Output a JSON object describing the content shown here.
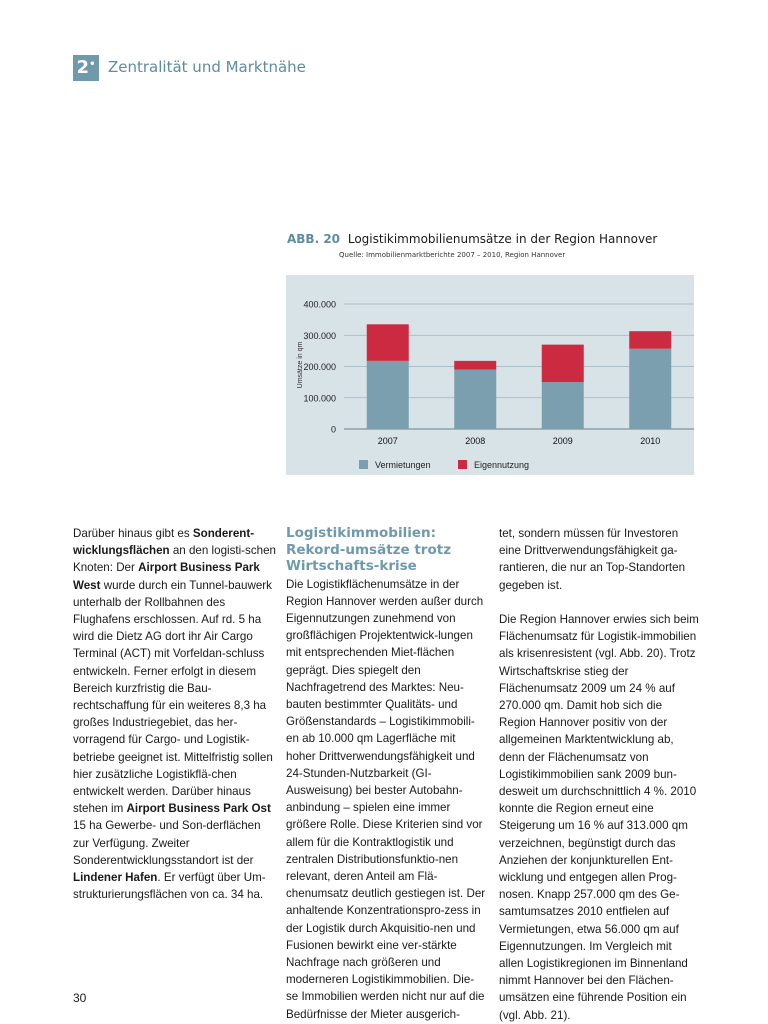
{
  "chapter": {
    "number": "2",
    "title": "Zentralität und Marktnähe"
  },
  "figure": {
    "number": "ABB. 20",
    "title": "Logistikimmobilienumsätze in der Region Hannover",
    "source": "Quelle: Immobilienmarktberichte 2007 – 2010, Region Hannover"
  },
  "chart_data": {
    "type": "bar",
    "stacked": true,
    "categories": [
      "2007",
      "2008",
      "2009",
      "2010"
    ],
    "series": [
      {
        "name": "Vermietungen",
        "color": "#7c9fb0",
        "values": [
          218000,
          190000,
          150000,
          257000
        ]
      },
      {
        "name": "Eigennutzung",
        "color": "#cc2a41",
        "values": [
          117000,
          28000,
          120000,
          56000
        ]
      }
    ],
    "ylabel": "Umsätze in qm",
    "ylim": [
      0,
      400000
    ],
    "yticks": [
      0,
      100000,
      200000,
      300000,
      400000
    ],
    "ytick_labels": [
      "0",
      "100.000",
      "200.000",
      "300.000",
      "400.000"
    ],
    "grid": true,
    "legend_position": "bottom",
    "background_color": "#d8e3e8"
  },
  "column1": {
    "p1_a": "Darüber hinaus gibt es ",
    "p1_b": "Sonderent-wicklungsflächen",
    "p1_c": " an den logisti-schen Knoten: Der ",
    "p1_d": "Airport Business Park West",
    "p1_e": " wurde durch ein Tunnel-bauwerk unterhalb der Rollbahnen des Flughafens erschlossen. Auf rd. 5 ha wird die Dietz AG dort ihr Air Cargo Terminal (ACT) mit Vorfeldan-schluss entwickeln. Ferner erfolgt in diesem Bereich kurzfristig die Bau-rechtschaffung für ein weiteres 8,3 ha großes Industriegebiet, das her-vorragend für Cargo- und Logistik-betriebe geeignet ist. Mittelfristig sollen hier zusätzliche Logistikflä-chen entwickelt werden. Darüber hinaus stehen im ",
    "p1_f": "Airport Business Park Ost",
    "p1_g": " 15 ha Gewerbe- und Son-derflächen zur Verfügung. Zweiter Sonderentwicklungsstandort ist der ",
    "p1_h": "Lindener Hafen",
    "p1_i": ". Er verfügt über Um-strukturierungsflächen von ca. 34 ha."
  },
  "column2": {
    "heading": "Logistikimmobilien: Rekord-umsätze trotz Wirtschafts-krise",
    "text": "Die Logistikflächenumsätze in der Region Hannover werden außer durch Eigennutzungen zunehmend von großflächigen Projektentwick-lungen mit entsprechenden Miet-flächen geprägt. Dies spiegelt den Nachfragetrend des Marktes: Neu-bauten bestimmter Qualitäts- und Größenstandards – Logistikimmobili-en ab 10.000 qm Lagerfläche mit hoher Drittverwendungsfähigkeit und 24-Stunden-Nutzbarkeit (GI-Ausweisung) bei bester Autobahn-anbindung – spielen eine immer größere Rolle. Diese Kriterien sind vor allem für die Kontraktlogistik und zentralen Distributionsfunktio-nen relevant, deren Anteil am Flä-chenumsatz deutlich gestiegen ist. Der anhaltende Konzentrationspro-zess in der Logistik durch Akquisitio-nen und Fusionen bewirkt eine ver-stärkte Nachfrage nach größeren und moderneren Logistikimmobilien. Die-se Immobilien werden nicht nur auf die Bedürfnisse der Mieter ausgerich-"
  },
  "column3": {
    "p1": "tet, sondern müssen für Investoren eine Drittverwendungsfähigkeit ga-rantieren, die nur an Top-Standorten gegeben ist.",
    "p2": "Die Region Hannover erwies sich beim Flächenumsatz für Logistik-immobilien als krisenresistent (vgl. Abb. 20). Trotz Wirtschaftskrise stieg der Flächenumsatz 2009 um 24 % auf 270.000 qm. Damit hob sich die Region Hannover positiv von der allgemeinen Marktentwicklung ab, denn der Flächenumsatz von Logistikimmobilien sank 2009 bun-desweit um durchschnittlich 4 %. 2010 konnte die Region erneut eine Steigerung um 16 % auf 313.000 qm verzeichnen, begünstigt durch das Anziehen der konjunkturellen Ent-wicklung und entgegen allen Prog-nosen. Knapp 257.000 qm des Ge-samtumsatzes 2010 entfielen auf Vermietungen, etwa 56.000 qm auf Eigennutzungen. Im Vergleich mit allen Logistikregionen im Binnenland nimmt Hannover bei den Flächen-umsätzen eine führende Position ein (vgl. Abb. 21)."
  },
  "page_number": "30"
}
